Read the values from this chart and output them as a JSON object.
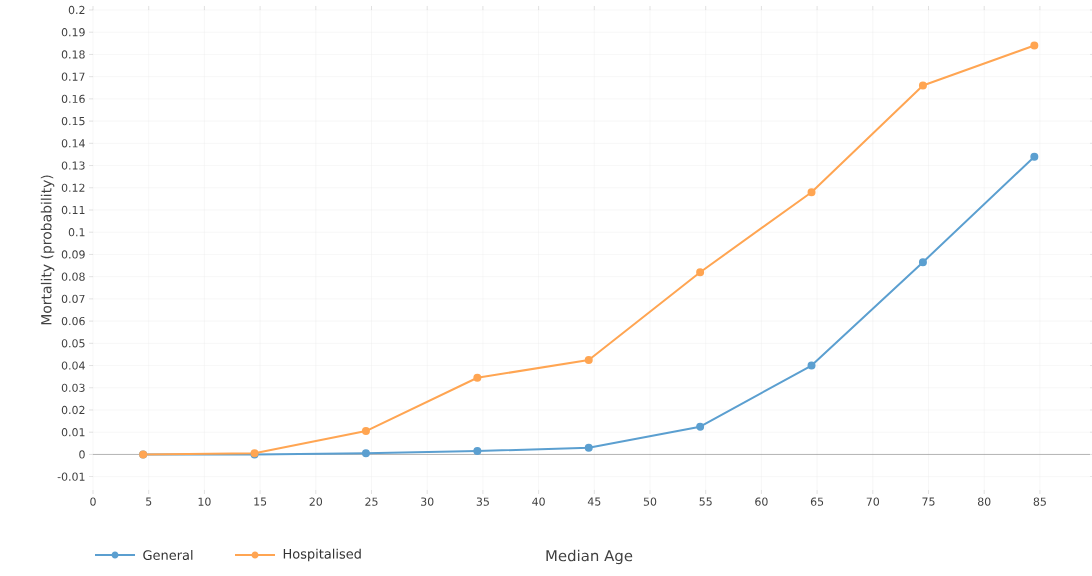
{
  "chart_data": {
    "type": "line",
    "xlabel": "Median Age",
    "ylabel": "Mortality (probability)",
    "x": [
      4.5,
      14.5,
      24.5,
      34.5,
      44.5,
      54.5,
      64.5,
      74.5,
      84.5
    ],
    "series": [
      {
        "name": "General",
        "color": "#5b9fd0",
        "values": [
          0,
          0,
          0.0005,
          0.0015,
          0.003,
          0.0125,
          0.04,
          0.0865,
          0.134
        ]
      },
      {
        "name": "Hospitalised",
        "color": "#ffa552",
        "values": [
          0,
          0.0005,
          0.0105,
          0.0345,
          0.0425,
          0.082,
          0.118,
          0.166,
          0.184
        ]
      }
    ],
    "xlim": [
      0,
      89.5
    ],
    "ylim": [
      -0.016,
      0.2
    ],
    "xticks": [
      0,
      5,
      10,
      15,
      20,
      25,
      30,
      35,
      40,
      45,
      50,
      55,
      60,
      65,
      70,
      75,
      80,
      85
    ],
    "yticks": [
      -0.01,
      0,
      0.01,
      0.02,
      0.03,
      0.04,
      0.05,
      0.06,
      0.07,
      0.08,
      0.09,
      0.1,
      0.11,
      0.12,
      0.13,
      0.14,
      0.15,
      0.16,
      0.17,
      0.18,
      0.19,
      0.2
    ],
    "grid": true,
    "legend": "bottom left",
    "marker": "circle",
    "line_style": "solid"
  }
}
